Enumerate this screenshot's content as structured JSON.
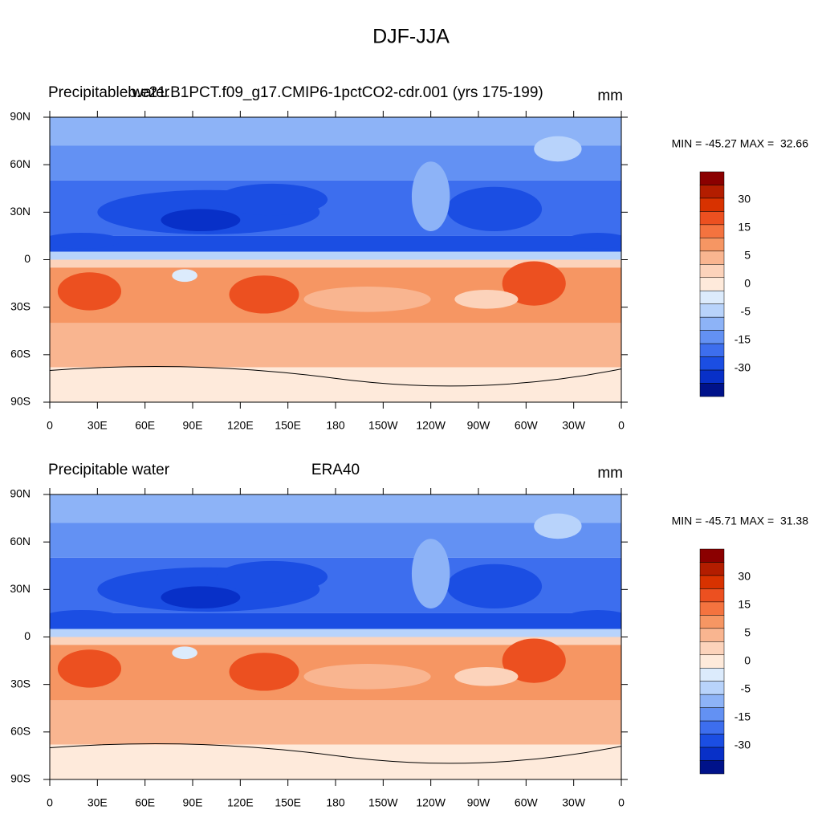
{
  "title": "DJF-JJA",
  "panels": [
    {
      "left": "Precipitable water",
      "center": "b.e21.B1PCT.f09_g17.CMIP6-1pctCO2-cdr.001 (yrs 175-199)",
      "right": "mm",
      "stats": "MIN = -45.27 MAX =  32.66"
    },
    {
      "left": "Precipitable water",
      "center": "ERA40",
      "right": "mm",
      "stats": "MIN = -45.71 MAX =  31.38"
    }
  ],
  "lat_labels": [
    "90N",
    "60N",
    "30N",
    "0",
    "30S",
    "60S",
    "90S"
  ],
  "lon_labels": [
    "0",
    "30E",
    "60E",
    "90E",
    "120E",
    "150E",
    "180",
    "150W",
    "120W",
    "90W",
    "60W",
    "30W",
    "0"
  ],
  "colorbar": {
    "labels": [
      "30",
      "15",
      "5",
      "0",
      "-5",
      "-15",
      "-30"
    ],
    "colors": [
      "#8b0000",
      "#b31d00",
      "#d83200",
      "#ec5020",
      "#f4733f",
      "#f69663",
      "#f9b590",
      "#fcd3bb",
      "#feeadb",
      "#dcebfc",
      "#b8d3fb",
      "#8db3f7",
      "#6391f3",
      "#3d6eee",
      "#1b4ee3",
      "#0830c8",
      "#00128a"
    ]
  }
}
